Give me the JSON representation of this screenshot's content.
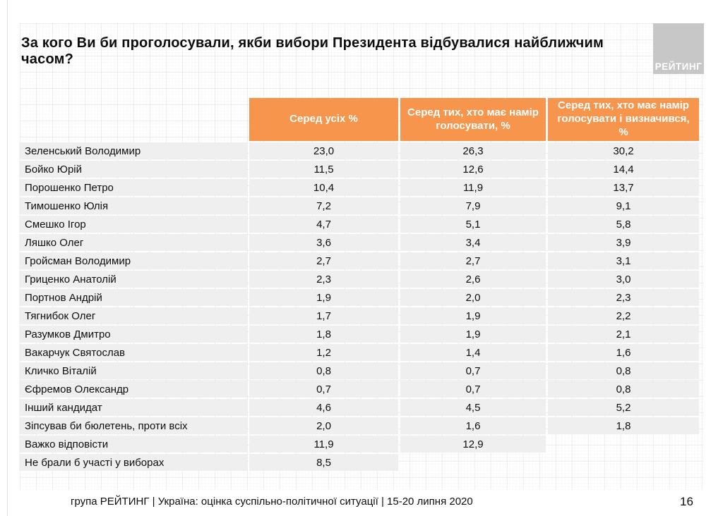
{
  "title": "За кого Ви би проголосували, якби вибори Президента відбувалися найближчим часом?",
  "logo": {
    "text": "РЕЙТИНГ"
  },
  "colors": {
    "header_orange": "#f6954b",
    "row_gray": "#efefef",
    "logo_gray": "#c7c7c7"
  },
  "table": {
    "columns": [
      "Серед усіх %",
      "Серед тих, хто має намір голосувати, %",
      "Серед тих, хто має намір голосувати і визначився, %"
    ],
    "rows": [
      {
        "name": "Зеленський Володимир",
        "values": [
          "23,0",
          "26,3",
          "30,2"
        ]
      },
      {
        "name": "Бойко Юрій",
        "values": [
          "11,5",
          "12,6",
          "14,4"
        ]
      },
      {
        "name": "Порошенко Петро",
        "values": [
          "10,4",
          "11,9",
          "13,7"
        ]
      },
      {
        "name": "Тимошенко Юлія",
        "values": [
          "7,2",
          "7,9",
          "9,1"
        ]
      },
      {
        "name": "Смешко Ігор",
        "values": [
          "4,7",
          "5,1",
          "5,8"
        ]
      },
      {
        "name": "Ляшко Олег",
        "values": [
          "3,6",
          "3,4",
          "3,9"
        ]
      },
      {
        "name": "Гройсман Володимир",
        "values": [
          "2,7",
          "2,7",
          "3,1"
        ]
      },
      {
        "name": "Гриценко Анатолій",
        "values": [
          "2,3",
          "2,6",
          "3,0"
        ]
      },
      {
        "name": "Портнов Андрій",
        "values": [
          "1,9",
          "2,0",
          "2,3"
        ]
      },
      {
        "name": "Тягнибок Олег",
        "values": [
          "1,7",
          "1,9",
          "2,2"
        ]
      },
      {
        "name": "Разумков Дмитро",
        "values": [
          "1,8",
          "1,9",
          "2,1"
        ]
      },
      {
        "name": "Вакарчук Святослав",
        "values": [
          "1,2",
          "1,4",
          "1,6"
        ]
      },
      {
        "name": "Кличко Віталій",
        "values": [
          "0,8",
          "0,7",
          "0,8"
        ]
      },
      {
        "name": "Єфремов Олександр",
        "values": [
          "0,7",
          "0,7",
          "0,8"
        ]
      },
      {
        "name": "Інший кандидат",
        "values": [
          "4,6",
          "4,5",
          "5,2"
        ]
      },
      {
        "name": "Зіпсував би бюлетень, проти всіх",
        "values": [
          "2,0",
          "1,6",
          "1,8"
        ]
      },
      {
        "name": "Важко відповісти",
        "values": [
          "11,9",
          "12,9",
          null
        ]
      },
      {
        "name": "Не брали б участі у виборах",
        "values": [
          "8,5",
          null,
          null
        ]
      }
    ]
  },
  "footer": {
    "text": "група РЕЙТИНГ |  Україна: оцінка суспільно-політичної  ситуації  | 15-20 липня  2020",
    "page_number": "16"
  },
  "chart_data": {
    "type": "table",
    "title": "За кого Ви би проголосували, якби вибори Президента відбувалися найближчим часом?",
    "columns": [
      "Серед усіх %",
      "Серед тих, хто має намір голосувати, %",
      "Серед тих, хто має намір голосувати і визначився, %"
    ],
    "rows": [
      [
        "Зеленський Володимир",
        23.0,
        26.3,
        30.2
      ],
      [
        "Бойко Юрій",
        11.5,
        12.6,
        14.4
      ],
      [
        "Порошенко Петро",
        10.4,
        11.9,
        13.7
      ],
      [
        "Тимошенко Юлія",
        7.2,
        7.9,
        9.1
      ],
      [
        "Смешко Ігор",
        4.7,
        5.1,
        5.8
      ],
      [
        "Ляшко Олег",
        3.6,
        3.4,
        3.9
      ],
      [
        "Гройсман Володимир",
        2.7,
        2.7,
        3.1
      ],
      [
        "Гриценко Анатолій",
        2.3,
        2.6,
        3.0
      ],
      [
        "Портнов Андрій",
        1.9,
        2.0,
        2.3
      ],
      [
        "Тягнибок Олег",
        1.7,
        1.9,
        2.2
      ],
      [
        "Разумков Дмитро",
        1.8,
        1.9,
        2.1
      ],
      [
        "Вакарчук Святослав",
        1.2,
        1.4,
        1.6
      ],
      [
        "Кличко Віталій",
        0.8,
        0.7,
        0.8
      ],
      [
        "Єфремов Олександр",
        0.7,
        0.7,
        0.8
      ],
      [
        "Інший кандидат",
        4.6,
        4.5,
        5.2
      ],
      [
        "Зіпсував би бюлетень, проти всіх",
        2.0,
        1.6,
        1.8
      ],
      [
        "Важко відповісти",
        11.9,
        12.9,
        null
      ],
      [
        "Не брали б участі у виборах",
        8.5,
        null,
        null
      ]
    ]
  }
}
